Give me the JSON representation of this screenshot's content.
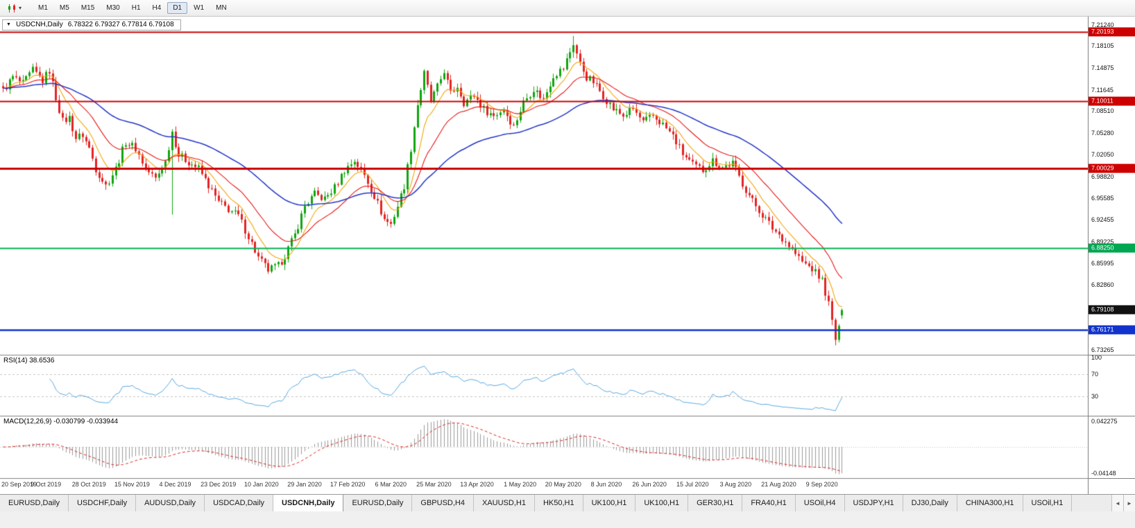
{
  "toolbar": {
    "dropdown_icon": "▾",
    "timeframes": [
      "M1",
      "M5",
      "M15",
      "M30",
      "H1",
      "H4",
      "D1",
      "W1",
      "MN"
    ],
    "active_timeframe": "D1"
  },
  "chart": {
    "dropdown_marker": "▼",
    "title": "USDCNH,Daily",
    "ohlc": "6.78322 6.79327 6.77814 6.79108"
  },
  "rsi": {
    "label": "RSI(14) 38.6536",
    "axis_ticks": [
      "100",
      "70",
      "30"
    ]
  },
  "macd": {
    "label": "MACD(12,26,9) -0.030799 -0.033944",
    "axis_ticks": [
      "0.042275",
      "-0.04148"
    ]
  },
  "price_axis": {
    "ticks": [
      "7.21240",
      "7.18105",
      "7.14875",
      "7.11645",
      "7.08510",
      "7.05280",
      "7.02050",
      "6.98820",
      "6.95585",
      "6.92455",
      "6.89225",
      "6.85995",
      "6.82860",
      "6.73265"
    ],
    "badges": [
      {
        "value": "7.20193",
        "color": "#cc0000",
        "name": "resistance-level-badge"
      },
      {
        "value": "7.10011",
        "color": "#cc0000",
        "name": "resistance-level-badge"
      },
      {
        "value": "7.00029",
        "color": "#cc0000",
        "name": "resistance-level-badge"
      },
      {
        "value": "6.88250",
        "color": "#00a651",
        "name": "support-level-badge"
      },
      {
        "value": "6.79108",
        "color": "#111111",
        "name": "current-price-badge"
      },
      {
        "value": "6.76171",
        "color": "#1133cc",
        "name": "support-level-badge"
      }
    ]
  },
  "chart_data": {
    "type": "candlestick",
    "symbol": "USDCNH",
    "timeframe": "Daily",
    "open": 6.78322,
    "high": 6.79327,
    "low": 6.77814,
    "close": 6.79108,
    "y_range": [
      6.725,
      7.2245
    ],
    "candle_count": 254,
    "last_candle": [
      6.78322,
      6.79327,
      6.77814,
      6.79108
    ],
    "x_labels": [
      "20 Sep 2019",
      "9 Oct 2019",
      "28 Oct 2019",
      "15 Nov 2019",
      "4 Dec 2019",
      "23 Dec 2019",
      "10 Jan 2020",
      "29 Jan 2020",
      "17 Feb 2020",
      "6 Mar 2020",
      "25 Mar 2020",
      "13 Apr 2020",
      "1 May 2020",
      "20 May 2020",
      "8 Jun 2020",
      "26 Jun 2020",
      "15 Jul 2020",
      "3 Aug 2020",
      "21 Aug 2020",
      "9 Sep 2020"
    ],
    "label_every": 13,
    "price_anchors": [
      [
        0,
        7.115
      ],
      [
        3,
        7.135
      ],
      [
        6,
        7.125
      ],
      [
        9,
        7.145
      ],
      [
        12,
        7.13
      ],
      [
        14,
        7.145
      ],
      [
        16,
        7.105
      ],
      [
        18,
        7.07
      ],
      [
        20,
        7.075
      ],
      [
        22,
        7.045
      ],
      [
        24,
        7.05
      ],
      [
        26,
        7.03
      ],
      [
        28,
        7.0
      ],
      [
        31,
        6.975
      ],
      [
        34,
        7.0
      ],
      [
        37,
        7.04
      ],
      [
        40,
        7.03
      ],
      [
        43,
        7.0
      ],
      [
        46,
        6.985
      ],
      [
        49,
        7.01
      ],
      [
        51,
        7.055
      ],
      [
        53,
        7.02
      ],
      [
        56,
        7.01
      ],
      [
        59,
        7.0
      ],
      [
        62,
        6.975
      ],
      [
        65,
        6.95
      ],
      [
        68,
        6.94
      ],
      [
        71,
        6.93
      ],
      [
        74,
        6.9
      ],
      [
        77,
        6.868
      ],
      [
        80,
        6.85
      ],
      [
        83,
        6.856
      ],
      [
        85,
        6.872
      ],
      [
        88,
        6.902
      ],
      [
        91,
        6.945
      ],
      [
        94,
        6.962
      ],
      [
        97,
        6.955
      ],
      [
        100,
        6.972
      ],
      [
        103,
        6.998
      ],
      [
        106,
        7.012
      ],
      [
        109,
        6.99
      ],
      [
        112,
        6.96
      ],
      [
        115,
        6.925
      ],
      [
        117,
        6.918
      ],
      [
        119,
        6.945
      ],
      [
        121,
        6.975
      ],
      [
        123,
        7.03
      ],
      [
        125,
        7.095
      ],
      [
        127,
        7.14
      ],
      [
        129,
        7.1
      ],
      [
        131,
        7.12
      ],
      [
        133,
        7.145
      ],
      [
        135,
        7.11
      ],
      [
        137,
        7.122
      ],
      [
        139,
        7.098
      ],
      [
        142,
        7.108
      ],
      [
        145,
        7.088
      ],
      [
        148,
        7.078
      ],
      [
        151,
        7.088
      ],
      [
        154,
        7.062
      ],
      [
        157,
        7.098
      ],
      [
        160,
        7.118
      ],
      [
        163,
        7.102
      ],
      [
        166,
        7.138
      ],
      [
        169,
        7.148
      ],
      [
        172,
        7.185
      ],
      [
        174,
        7.155
      ],
      [
        176,
        7.135
      ],
      [
        178,
        7.128
      ],
      [
        181,
        7.108
      ],
      [
        184,
        7.088
      ],
      [
        187,
        7.078
      ],
      [
        190,
        7.088
      ],
      [
        193,
        7.068
      ],
      [
        196,
        7.078
      ],
      [
        199,
        7.065
      ],
      [
        202,
        7.048
      ],
      [
        205,
        7.022
      ],
      [
        208,
        7.005
      ],
      [
        211,
        6.998
      ],
      [
        214,
        7.012
      ],
      [
        217,
        7.002
      ],
      [
        220,
        7.008
      ],
      [
        223,
        6.978
      ],
      [
        226,
        6.952
      ],
      [
        229,
        6.932
      ],
      [
        232,
        6.912
      ],
      [
        235,
        6.898
      ],
      [
        238,
        6.88
      ],
      [
        241,
        6.862
      ],
      [
        244,
        6.852
      ],
      [
        247,
        6.835
      ],
      [
        249,
        6.8
      ],
      [
        251,
        6.748
      ],
      [
        252,
        6.762
      ],
      [
        253,
        6.791
      ]
    ],
    "wick_extremes": [
      {
        "i": 51,
        "low": 6.932
      },
      {
        "i": 172,
        "high": 7.196
      },
      {
        "i": 251,
        "low": 6.739
      }
    ],
    "horizontal_lines": [
      {
        "price": 7.20193,
        "color": "#cc0000",
        "width": 2
      },
      {
        "price": 7.10011,
        "color": "#cc0000",
        "width": 2
      },
      {
        "price": 7.00029,
        "color": "#cc0000",
        "width": 3
      },
      {
        "price": 6.8825,
        "color": "#00b050",
        "width": 2
      },
      {
        "price": 6.76171,
        "color": "#1133cc",
        "width": 2.5
      }
    ],
    "moving_averages": [
      {
        "period": 8,
        "color": "#f2a50a",
        "width": 1.1
      },
      {
        "period": 20,
        "color": "#e81515",
        "width": 1.1
      },
      {
        "period": 55,
        "color": "#2034c8",
        "width": 1.5
      }
    ],
    "rsi": {
      "period": 14,
      "value": 38.6536,
      "color": "#55a7e0",
      "levels": [
        70,
        30
      ],
      "level_color": "#c4c4c4"
    },
    "macd": {
      "fast": 12,
      "slow": 26,
      "signal": 9,
      "value": -0.030799,
      "signal_value": -0.033944,
      "hist_color": "#9a9a9a",
      "signal_color": "#dd2222"
    },
    "up_color": "#0fa50f",
    "down_color": "#e32222"
  },
  "tabs": {
    "items": [
      "EURUSD,Daily",
      "USDCHF,Daily",
      "AUDUSD,Daily",
      "USDCAD,Daily",
      "USDCNH,Daily",
      "EURUSD,Daily",
      "GBPUSD,H4",
      "XAUUSD,H1",
      "HK50,H1",
      "UK100,H1",
      "UK100,H1",
      "GER30,H1",
      "FRA40,H1",
      "USOil,H4",
      "USDJPY,H1",
      "DJ30,Daily",
      "CHINA300,H1",
      "USOil,H1"
    ],
    "active_index": 4,
    "scroll_left": "◄",
    "scroll_right": "►"
  }
}
